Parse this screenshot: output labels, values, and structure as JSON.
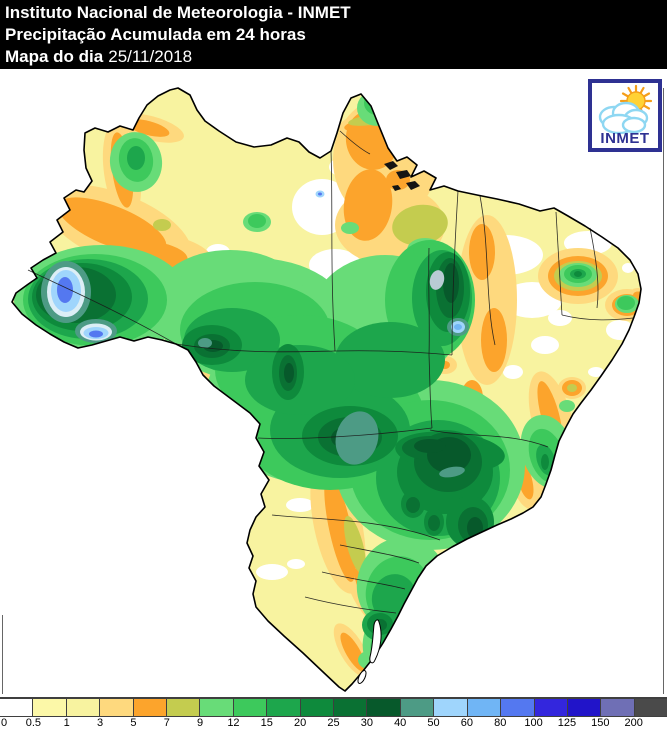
{
  "header": {
    "line1": "Instituto Nacional de Meteorologia - INMET",
    "line2": "Precipitação Acumulada em 24 horas",
    "line3_label": "Mapa do dia",
    "line3_date": "25/11/2018"
  },
  "logo": {
    "text": "INMET"
  },
  "legend": {
    "stops": [
      {
        "label": "0",
        "color": "#FFFFFF"
      },
      {
        "label": "0.5",
        "color": "#FCF8A8"
      },
      {
        "label": "1",
        "color": "#F8F3A0"
      },
      {
        "label": "3",
        "color": "#FED97E"
      },
      {
        "label": "5",
        "color": "#FCA42C"
      },
      {
        "label": "7",
        "color": "#C4CC4F"
      },
      {
        "label": "9",
        "color": "#68DC78"
      },
      {
        "label": "12",
        "color": "#3DC95C"
      },
      {
        "label": "15",
        "color": "#1DA64C"
      },
      {
        "label": "20",
        "color": "#0E8A3C"
      },
      {
        "label": "25",
        "color": "#0A7133"
      },
      {
        "label": "30",
        "color": "#07592B"
      },
      {
        "label": "40",
        "color": "#4D9B85"
      },
      {
        "label": "50",
        "color": "#9FD5FC"
      },
      {
        "label": "60",
        "color": "#70B5F5"
      },
      {
        "label": "80",
        "color": "#5478F0"
      },
      {
        "label": "100",
        "color": "#3326DD"
      },
      {
        "label": "125",
        "color": "#2114C9"
      },
      {
        "label": "150",
        "color": "#6F6FB5"
      },
      {
        "label": "200",
        "color": "#4A4A4A"
      }
    ]
  },
  "colors": {
    "header_bg": "#000000",
    "header_text": "#FFFFFF",
    "pale_halo": "#DCEEF6",
    "gray_blue_spot": "#B9CBD4",
    "logo_border": "#2E3192",
    "logo_text": "#2E3192",
    "cloud_outline": "#8ED7F2",
    "sun_fill": "#FFD234",
    "sun_stroke": "#F59E19",
    "state_line": "#1A1A1A",
    "frame": "#666666"
  },
  "chart_data": {
    "type": "heatmap",
    "title": "Precipitação Acumulada em 24 horas",
    "map_date": "25/11/2018",
    "area": "Brazil",
    "legend_position": "bottom",
    "scale_values": [
      0,
      0.5,
      1,
      3,
      5,
      7,
      9,
      12,
      15,
      20,
      25,
      30,
      40,
      50,
      60,
      80,
      100,
      125,
      150,
      200
    ]
  }
}
